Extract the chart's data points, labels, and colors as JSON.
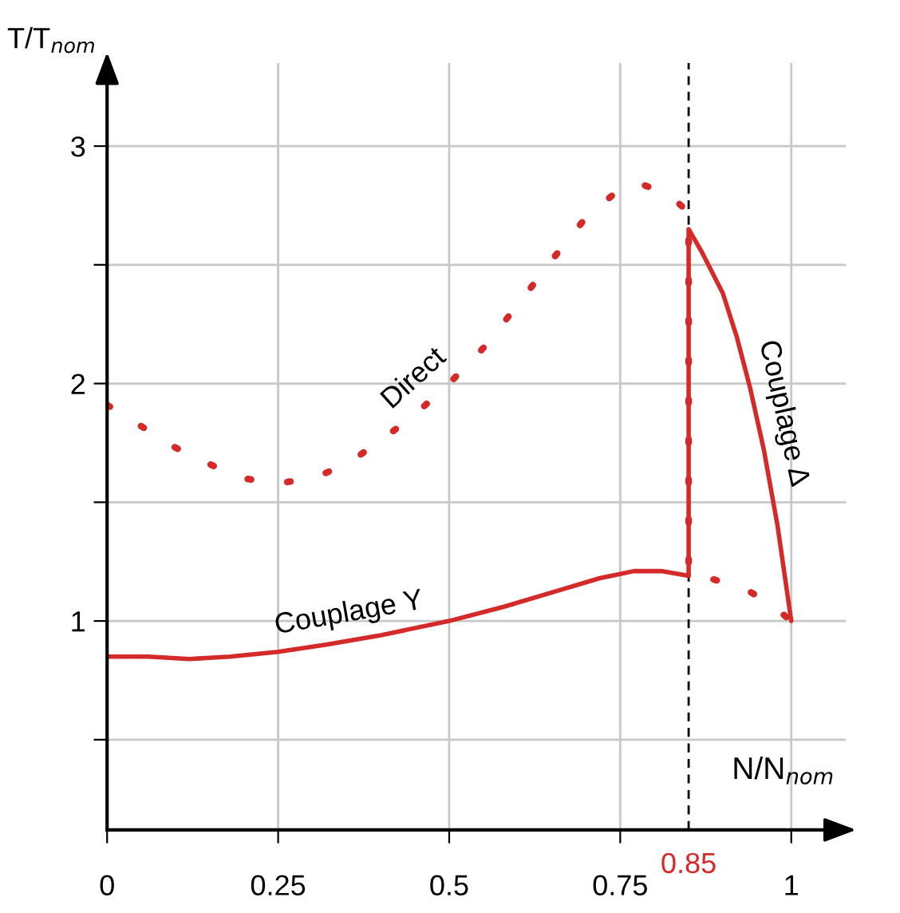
{
  "chart_data": {
    "type": "line",
    "xlabel": "N/N$_{nom}$",
    "ylabel": "T/T$_{nom}$",
    "series": [
      {
        "name": "Direct",
        "color": "#d42a2a",
        "line_style": "dotted",
        "x": [
          0,
          0.05,
          0.1,
          0.15,
          0.2,
          0.25,
          0.3,
          0.35,
          0.4,
          0.45,
          0.5,
          0.55,
          0.6,
          0.65,
          0.7,
          0.75,
          0.78,
          0.82,
          0.85,
          0.85,
          0.88,
          0.93,
          0.97,
          1.0
        ],
        "values": [
          1.91,
          1.82,
          1.73,
          1.66,
          1.6,
          1.58,
          1.6,
          1.66,
          1.76,
          1.87,
          2.0,
          2.15,
          2.33,
          2.52,
          2.7,
          2.82,
          2.84,
          2.8,
          2.72,
          1.2,
          1.18,
          1.14,
          1.07,
          1.0
        ]
      },
      {
        "name": "Couplage Y",
        "color": "#d42a2a",
        "line_style": "solid",
        "x": [
          0,
          0.06,
          0.12,
          0.18,
          0.25,
          0.32,
          0.4,
          0.5,
          0.58,
          0.65,
          0.72,
          0.77,
          0.81,
          0.85
        ],
        "values": [
          0.85,
          0.85,
          0.84,
          0.85,
          0.87,
          0.9,
          0.94,
          1.0,
          1.06,
          1.12,
          1.18,
          1.21,
          1.21,
          1.19
        ]
      },
      {
        "name": "Couplage Δ",
        "color": "#d42a2a",
        "line_style": "solid",
        "x": [
          0.85,
          0.85,
          0.87,
          0.9,
          0.92,
          0.94,
          0.96,
          0.98,
          0.99,
          1.0
        ],
        "values": [
          1.19,
          2.65,
          2.55,
          2.38,
          2.2,
          1.98,
          1.72,
          1.4,
          1.2,
          1.0
        ]
      }
    ],
    "xlim": [
      0,
      1.08
    ],
    "ylim": [
      0.12,
      3.35
    ],
    "xticks": [
      0,
      0.25,
      0.5,
      0.75,
      1
    ],
    "yticks": [
      {
        "value": 0.5,
        "label": null
      },
      1,
      {
        "value": 1.5,
        "label": null
      },
      2,
      {
        "value": 2.5,
        "label": null
      },
      3
    ],
    "grid": true,
    "legend": false,
    "ref_lines": [
      {
        "axis": "x",
        "value": 0.85,
        "label": "0.85",
        "line_style": "dashed"
      }
    ]
  }
}
